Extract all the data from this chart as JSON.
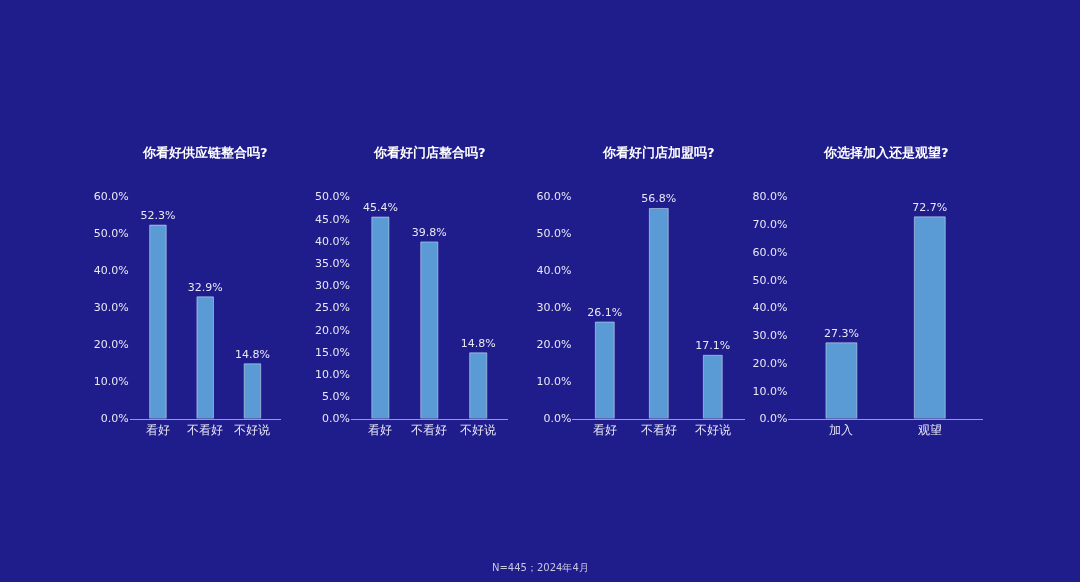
{
  "chart_data": [
    {
      "type": "bar",
      "title": "你看好供应链整合吗?",
      "categories": [
        "看好",
        "不看好",
        "不好说"
      ],
      "values": [
        52.3,
        32.9,
        14.8
      ],
      "color": "#5b9bd5",
      "value_labels": [
        "52.3%",
        "32.9%",
        "14.8%"
      ],
      "ylim": [
        0,
        60
      ],
      "yticks": [
        {
          "value": 0,
          "label": "0.0%"
        },
        {
          "value": 10,
          "label": "10.0%"
        },
        {
          "value": 20,
          "label": "20.0%"
        },
        {
          "value": 30,
          "label": "30.0%"
        },
        {
          "value": 40,
          "label": "40.0%"
        },
        {
          "value": 50,
          "label": "50.0%"
        },
        {
          "value": 60,
          "label": "60.0%"
        }
      ],
      "grid": false,
      "legend": false
    },
    {
      "type": "bar",
      "title": "你看好门店整合吗?",
      "categories": [
        "看好",
        "不看好",
        "不好说"
      ],
      "values": [
        45.4,
        39.8,
        14.8
      ],
      "color": "#5b9bd5",
      "value_labels": [
        "45.4%",
        "39.8%",
        "14.8%"
      ],
      "ylim": [
        0,
        50
      ],
      "yticks": [
        {
          "value": 0,
          "label": "0.0%"
        },
        {
          "value": 5,
          "label": "5.0%"
        },
        {
          "value": 10,
          "label": "10.0%"
        },
        {
          "value": 15,
          "label": "15.0%"
        },
        {
          "value": 20,
          "label": "20.0%"
        },
        {
          "value": 25,
          "label": "25.0%"
        },
        {
          "value": 30,
          "label": "30.0%"
        },
        {
          "value": 35,
          "label": "35.0%"
        },
        {
          "value": 40,
          "label": "40.0%"
        },
        {
          "value": 45,
          "label": "45.0%"
        },
        {
          "value": 50,
          "label": "50.0%"
        }
      ],
      "grid": false,
      "legend": false
    },
    {
      "type": "bar",
      "title": "你看好门店加盟吗?",
      "categories": [
        "看好",
        "不看好",
        "不好说"
      ],
      "values": [
        26.1,
        56.8,
        17.1
      ],
      "color": "#5b9bd5",
      "value_labels": [
        "26.1%",
        "56.8%",
        "17.1%"
      ],
      "ylim": [
        0,
        60
      ],
      "yticks": [
        {
          "value": 0,
          "label": "0.0%"
        },
        {
          "value": 10,
          "label": "10.0%"
        },
        {
          "value": 20,
          "label": "20.0%"
        },
        {
          "value": 30,
          "label": "30.0%"
        },
        {
          "value": 40,
          "label": "40.0%"
        },
        {
          "value": 50,
          "label": "50.0%"
        },
        {
          "value": 60,
          "label": "60.0%"
        }
      ],
      "grid": false,
      "legend": false
    },
    {
      "type": "bar",
      "title": "你选择加入还是观望?",
      "categories": [
        "加入",
        "观望"
      ],
      "values": [
        27.3,
        72.7
      ],
      "color": "#5b9bd5",
      "value_labels": [
        "27.3%",
        "72.7%"
      ],
      "ylim": [
        0,
        80
      ],
      "yticks": [
        {
          "value": 0,
          "label": "0.0%"
        },
        {
          "value": 10,
          "label": "10.0%"
        },
        {
          "value": 20,
          "label": "20.0%"
        },
        {
          "value": 30,
          "label": "30.0%"
        },
        {
          "value": 40,
          "label": "40.0%"
        },
        {
          "value": 50,
          "label": "50.0%"
        },
        {
          "value": 60,
          "label": "60.0%"
        },
        {
          "value": 70,
          "label": "70.0%"
        },
        {
          "value": 80,
          "label": "80.0%"
        }
      ],
      "grid": false,
      "legend": false,
      "annotations": [
        "N=445；2024年4月"
      ]
    }
  ]
}
